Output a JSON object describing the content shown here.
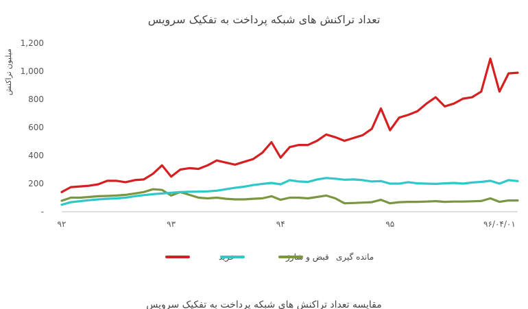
{
  "chart_data": {
    "type": "line",
    "title": "تعداد تراکنش های شبکه پرداخت به تفکیک سرویس",
    "ylabel": "میلیون تراکنش",
    "xlabel": "",
    "ylim": [
      0,
      1200
    ],
    "y_ticks": [
      0,
      200,
      400,
      600,
      800,
      1000,
      1200
    ],
    "y_tick_labels": [
      "-",
      "200",
      "400",
      "600",
      "800",
      "1,000",
      "1,200"
    ],
    "x_tick_labels": [
      "۹۲",
      "۹۳",
      "۹۴",
      "۹۵",
      "۹۶/۰۴/۰۱"
    ],
    "x_tick_index": [
      0,
      12,
      24,
      36,
      48
    ],
    "grid": false,
    "legend_position": "bottom",
    "series": [
      {
        "name": "خرید",
        "color": "#d42020",
        "values": [
          140,
          175,
          180,
          185,
          195,
          220,
          220,
          210,
          225,
          230,
          270,
          330,
          250,
          300,
          310,
          305,
          330,
          365,
          350,
          335,
          355,
          375,
          420,
          495,
          385,
          460,
          475,
          475,
          505,
          550,
          530,
          505,
          525,
          545,
          590,
          735,
          580,
          670,
          690,
          715,
          770,
          815,
          750,
          770,
          805,
          815,
          855,
          1090,
          855,
          985,
          990
        ]
      },
      {
        "name": "قبض و شارژ",
        "color": "#2ec8c8",
        "values": [
          50,
          68,
          75,
          82,
          88,
          92,
          95,
          100,
          110,
          118,
          125,
          130,
          135,
          140,
          142,
          143,
          145,
          150,
          160,
          170,
          178,
          190,
          198,
          205,
          195,
          225,
          215,
          212,
          230,
          240,
          235,
          228,
          230,
          225,
          215,
          218,
          200,
          200,
          210,
          202,
          200,
          198,
          202,
          205,
          200,
          208,
          212,
          220,
          200,
          225,
          218
        ]
      },
      {
        "name": "مانده گیری",
        "color": "#7a9640",
        "values": [
          78,
          100,
          100,
          105,
          110,
          112,
          115,
          120,
          130,
          140,
          160,
          155,
          115,
          140,
          120,
          100,
          95,
          100,
          92,
          88,
          88,
          92,
          95,
          110,
          85,
          100,
          100,
          95,
          105,
          115,
          95,
          60,
          62,
          65,
          68,
          85,
          60,
          68,
          70,
          70,
          72,
          75,
          70,
          72,
          72,
          74,
          76,
          95,
          70,
          80,
          80
        ]
      }
    ]
  },
  "caption": "مقایسه تعداد تراکنش های شبکه پرداخت به تفکیک سرویس"
}
